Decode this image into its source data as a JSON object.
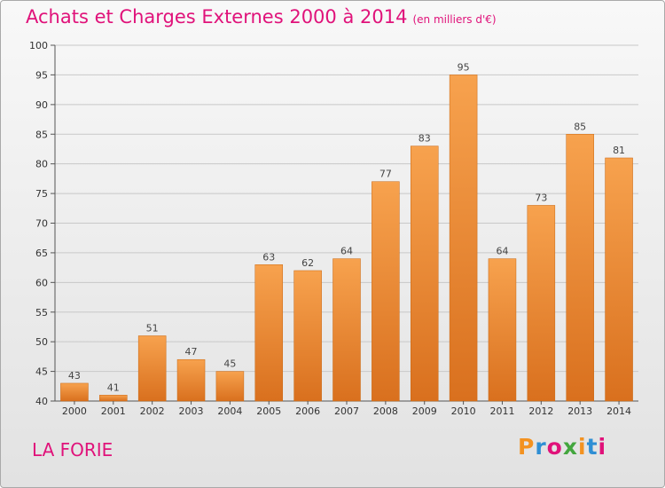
{
  "header": {
    "title": "Achats et Charges Externes 2000 à 2014",
    "unit": "(en milliers d'€)"
  },
  "footer": {
    "commune": "LA FORIE",
    "logo_letters": [
      "P",
      "r",
      "o",
      "x",
      "i",
      "t",
      "i"
    ],
    "logo_colors": [
      "#f39220",
      "#2f8fd4",
      "#e0127a",
      "#43a63e",
      "#f39220",
      "#2f8fd4",
      "#e0127a"
    ]
  },
  "colors": {
    "title": "#e0127a",
    "bar_top": "#f7a24e",
    "bar_bottom": "#d9701e"
  },
  "chart_data": {
    "type": "bar",
    "title": "Achats et Charges Externes 2000 à 2014",
    "categories": [
      "2000",
      "2001",
      "2002",
      "2003",
      "2004",
      "2005",
      "2006",
      "2007",
      "2008",
      "2009",
      "2010",
      "2011",
      "2012",
      "2013",
      "2014"
    ],
    "values": [
      43,
      41,
      51,
      47,
      45,
      63,
      62,
      64,
      77,
      83,
      95,
      64,
      73,
      85,
      81
    ],
    "xlabel": "",
    "ylabel": "",
    "ylim": [
      40,
      100
    ],
    "yticks": [
      40,
      45,
      50,
      55,
      60,
      65,
      70,
      75,
      80,
      85,
      90,
      95,
      100
    ],
    "grid": true,
    "data_labels": true
  }
}
